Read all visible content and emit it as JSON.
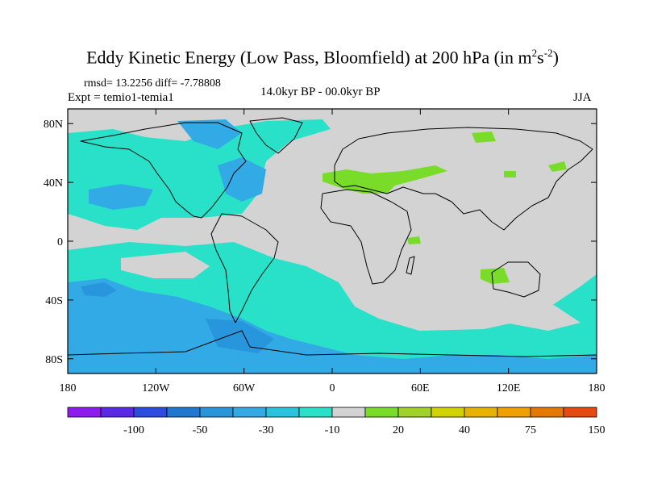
{
  "title": {
    "prefix": "Eddy Kinetic Energy (Low Pass, Bloomfield) at 200 hPa (in m",
    "sup1": "2",
    "mid": "s",
    "sup2": "-2",
    "suffix": ")"
  },
  "stats": {
    "rmsd_label": "rmsd= 13.2256 diff= -7.78808"
  },
  "expt_label": "Expt = temio1-temia1",
  "period_label": "14.0kyr BP - 00.0kyr BP",
  "season_label": "JJA",
  "map": {
    "projection": "cylindrical-equidistant",
    "lat_range": [
      -90,
      90
    ],
    "lon_range": [
      -180,
      180
    ],
    "background_color": "#d3d3d3",
    "y_tick_labels": [
      "80N",
      "40N",
      "0",
      "40S",
      "80S"
    ],
    "x_tick_labels": [
      "180",
      "120W",
      "60W",
      "0",
      "60E",
      "120E",
      "180"
    ]
  },
  "colorbar": {
    "colors": [
      "#8c1cf0",
      "#5a28e6",
      "#2d4be0",
      "#1e78d2",
      "#2896dc",
      "#32aae6",
      "#28c3dc",
      "#28e1c8",
      "#d3d3d3",
      "#78dc28",
      "#a0d228",
      "#d2d200",
      "#e6b400",
      "#f0a000",
      "#e67800",
      "#e64a10"
    ],
    "labels": [
      "-100",
      "-50",
      "-30",
      "-10",
      "20",
      "40",
      "75",
      "150"
    ]
  }
}
